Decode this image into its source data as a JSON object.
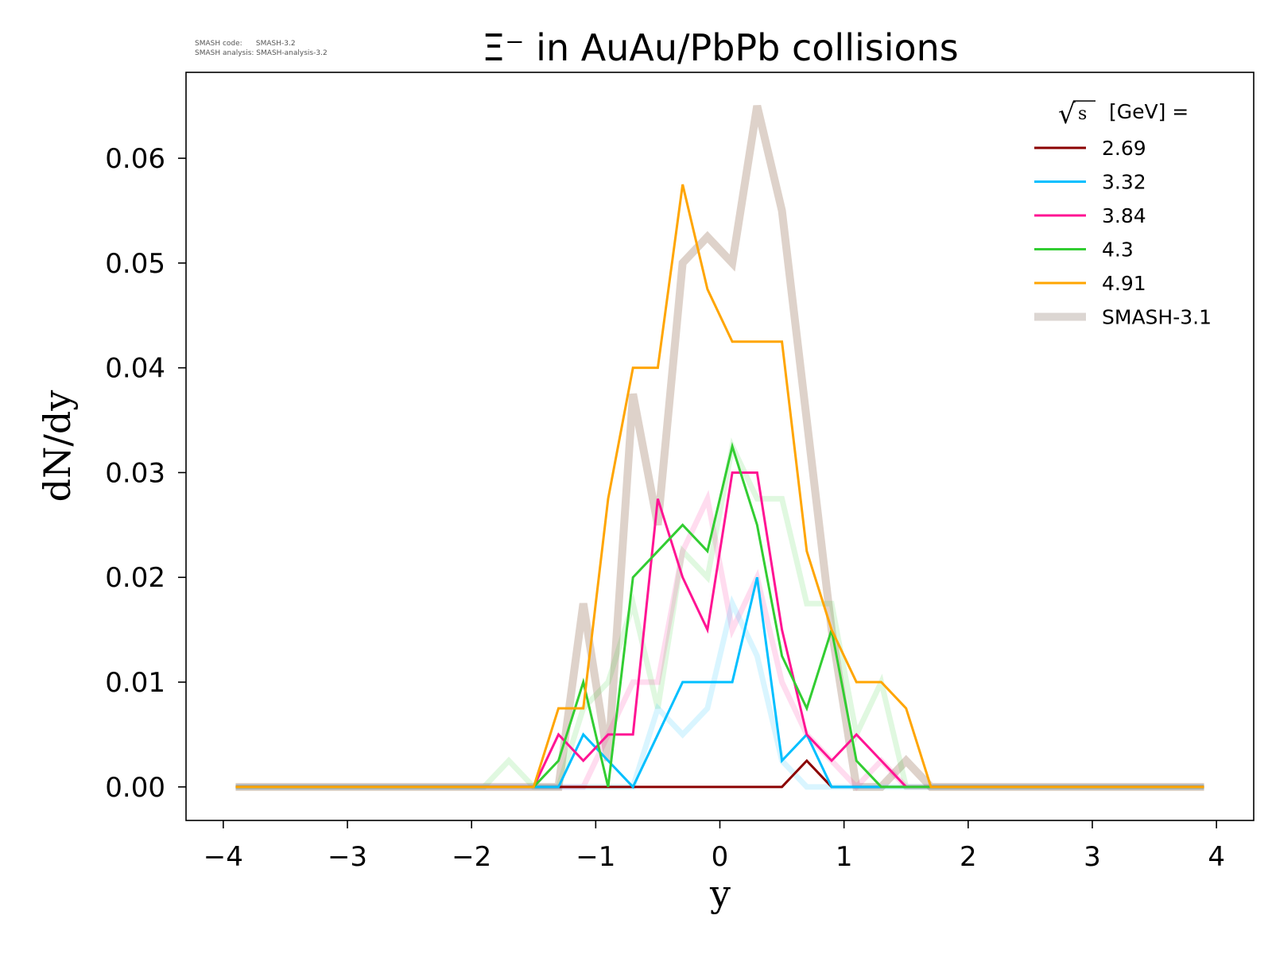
{
  "chart_data": {
    "type": "line",
    "title": "Ξ⁻ in AuAu/PbPb collisions",
    "xlabel": "y",
    "ylabel": "dN/dy",
    "xlim": [
      -4.3,
      4.3
    ],
    "ylim": [
      -0.0032,
      0.0682
    ],
    "xticks": [
      -4,
      -3,
      -2,
      -1,
      0,
      1,
      2,
      3,
      4
    ],
    "xtick_labels": [
      "−4",
      "−3",
      "−2",
      "−1",
      "0",
      "1",
      "2",
      "3",
      "4"
    ],
    "yticks": [
      0.0,
      0.01,
      0.02,
      0.03,
      0.04,
      0.05,
      0.06
    ],
    "ytick_labels": [
      "0.00",
      "0.01",
      "0.02",
      "0.03",
      "0.04",
      "0.05",
      "0.06"
    ],
    "grid": false,
    "legend": {
      "placement": "top-right",
      "title_radical": "√",
      "title_s": "s",
      "title_text": "[GeV] ="
    },
    "x": [
      -3.9,
      -1.9,
      -1.7,
      -1.5,
      -1.3,
      -1.1,
      -0.9,
      -0.7,
      -0.5,
      -0.3,
      -0.1,
      0.1,
      0.3,
      0.5,
      0.7,
      0.9,
      1.1,
      1.3,
      1.5,
      1.7,
      3.9
    ],
    "series": [
      {
        "name": "SMASH-3.1",
        "color": "#c8b4a6",
        "style": "reference",
        "in_legend": true,
        "legend_color": "#dcd6d2",
        "values": [
          0,
          0,
          0,
          0,
          0,
          0.0175,
          0.0025,
          0.0375,
          0.025,
          0.05,
          0.0525,
          0.05,
          0.065,
          0.055,
          0.035,
          0.015,
          0,
          0,
          0.0025,
          0,
          0
        ]
      },
      {
        "name": "SMASH-3.1 (4.3 GeV)",
        "color": "#32cd32",
        "style": "reference",
        "in_legend": false,
        "values": [
          0,
          0,
          0.0025,
          0,
          0,
          0.0075,
          0.01,
          0.0175,
          0.0075,
          0.0225,
          0.02,
          0.0325,
          0.0275,
          0.0275,
          0.0175,
          0.0175,
          0.005,
          0.01,
          0,
          0,
          0
        ]
      },
      {
        "name": "SMASH-3.1 (3.84 GeV)",
        "color": "#ff1493",
        "style": "reference",
        "in_legend": false,
        "values": [
          0,
          0,
          0,
          0,
          0,
          0,
          0.005,
          0.01,
          0.01,
          0.0225,
          0.0275,
          0.015,
          0.02,
          0.01,
          0.005,
          0.0025,
          0,
          0.0025,
          0,
          0,
          0
        ]
      },
      {
        "name": "SMASH-3.1 (3.32 GeV)",
        "color": "#00bfff",
        "style": "reference",
        "in_legend": false,
        "values": [
          0,
          0,
          0,
          0,
          0,
          0,
          0,
          0,
          0.0075,
          0.005,
          0.0075,
          0.0175,
          0.0125,
          0.0025,
          0,
          0,
          0,
          0,
          0,
          0,
          0
        ]
      },
      {
        "name": "2.69",
        "color": "#8b0000",
        "style": "main",
        "in_legend": true,
        "values": [
          0,
          0,
          0,
          0,
          0,
          0,
          0,
          0,
          0,
          0,
          0,
          0,
          0,
          0,
          0.0025,
          0,
          0,
          0,
          0,
          0,
          0
        ]
      },
      {
        "name": "3.32",
        "color": "#00bfff",
        "style": "main",
        "in_legend": true,
        "values": [
          0,
          0,
          0,
          0,
          0,
          0.005,
          0.0025,
          0,
          0.005,
          0.01,
          0.01,
          0.01,
          0.02,
          0.0025,
          0.005,
          0,
          0,
          0,
          0,
          0,
          0
        ]
      },
      {
        "name": "3.84",
        "color": "#ff1493",
        "style": "main",
        "in_legend": true,
        "values": [
          0,
          0,
          0,
          0,
          0.005,
          0.0025,
          0.005,
          0.005,
          0.0275,
          0.02,
          0.015,
          0.03,
          0.03,
          0.015,
          0.005,
          0.0025,
          0.005,
          0.0025,
          0,
          0,
          0
        ]
      },
      {
        "name": "4.3",
        "color": "#32cd32",
        "style": "main",
        "in_legend": true,
        "values": [
          0,
          0,
          0,
          0,
          0.0025,
          0.01,
          0,
          0.02,
          0.0225,
          0.025,
          0.0225,
          0.0325,
          0.025,
          0.0125,
          0.0075,
          0.015,
          0.0025,
          0,
          0,
          0,
          0
        ]
      },
      {
        "name": "4.91",
        "color": "#ffa500",
        "style": "main",
        "in_legend": true,
        "values": [
          0,
          0,
          0,
          0,
          0.0075,
          0.0075,
          0.0275,
          0.04,
          0.04,
          0.0575,
          0.0475,
          0.0425,
          0.0425,
          0.0425,
          0.0225,
          0.015,
          0.01,
          0.01,
          0.0075,
          0,
          0
        ]
      }
    ]
  },
  "meta": {
    "code": "SMASH code:      SMASH-3.2",
    "analysis": "SMASH analysis: SMASH-analysis-3.2"
  }
}
